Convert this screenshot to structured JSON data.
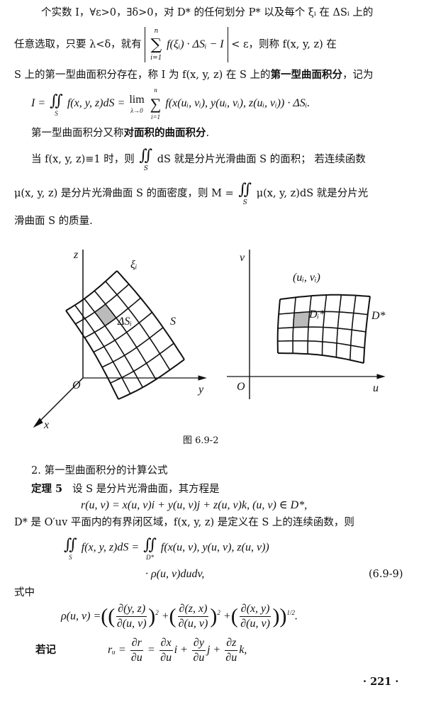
{
  "text": {
    "l1": "个实数 I，∀ε>0，∃δ>0，对 D* 的任何划分 P* 以及每个 ξᵢ 在 ΔSᵢ 上的",
    "l2": {
      "a": "任意选取，只要 λ<δ，就有",
      "sum_top": "n",
      "sum": "∑",
      "sum_bot": "i=1",
      "expr": "f(ξᵢ) · ΔSᵢ − I",
      "b": "< ε，则称 f(x, y, z) 在"
    },
    "l3": {
      "a": "S 上的第一型曲面积分存在，称 I 为 f(x, y, z) 在 S 上的",
      "bold": "第一型曲面积分",
      "b": "，记为"
    },
    "l4": {
      "a": "I =",
      "int": "∬",
      "int_sub": "S",
      "b": "f(x, y, z)dS =",
      "lim": "lim",
      "lim_sub": "λ→0",
      "sum_top": "n",
      "sum": "∑",
      "sum_bot": "i=1",
      "c": "f(x(uᵢ, vᵢ), y(uᵢ, vᵢ), z(uᵢ, vᵢ)) · ΔSᵢ."
    },
    "l5": {
      "a": "第一型曲面积分又称",
      "bold": "对面积的曲面积分",
      "b": "."
    },
    "l6": {
      "a": "当 f(x, y, z)≡1 时，则",
      "int": "∬",
      "int_sub": "S",
      "b": "dS 就是分片光滑曲面 S 的面积；  若连续函数"
    },
    "l7": {
      "a": "μ(x, y, z) 是分片光滑曲面 S 的面密度，则 M =",
      "int": "∬",
      "int_sub": "S",
      "b": "μ(x, y, z)dS 就是分片光"
    },
    "l8": "滑曲面 S 的质量."
  },
  "figure": {
    "left": {
      "z": "z",
      "y": "y",
      "x": "x",
      "origin": "O",
      "xi": "ξᵢ",
      "dS": "ΔSᵢ",
      "S": "S"
    },
    "right": {
      "v": "v",
      "u": "u",
      "origin": "O",
      "point": "(uᵢ, vᵢ)",
      "Di": "Dᵢ*",
      "D": "D*"
    },
    "caption": "图   6.9-2"
  },
  "section": {
    "heading": "2. 第一型曲面积分的计算公式",
    "theorem_label": "定理 5",
    "theorem_text": "设 S 是分片光滑曲面，其方程是",
    "eq_r": "r(u, v) = x(u, v)i + y(u, v)j + z(u, v)k,   (u, v) ∈ D*,",
    "d_line": "D* 是 O′uv 平面内的有界闭区域，f(x, y, z) 是定义在 S 上的连续函数，则",
    "eq1": {
      "int": "∬",
      "int_sub": "S",
      "a": "f(x, y, z)dS =",
      "int2": "∬",
      "int2_sub": "D*",
      "b": "f(x(u, v), y(u, v), z(u, v))"
    },
    "eq2": "· ρ(u, v)dudv,",
    "eq_number": "(6.9-9)",
    "where": "式中",
    "rho": {
      "lhs": "ρ(u, v) =",
      "n1": "∂(y, z)",
      "d1": "∂(u, v)",
      "n2": "∂(z, x)",
      "d2": "∂(u, v)",
      "n3": "∂(x, y)",
      "d3": "∂(u, v)",
      "exp": "2",
      "outer_exp": "1/2",
      "plus": "+",
      "end": "."
    },
    "note_label": "若记",
    "ru": {
      "lhs": "rᵤ =",
      "n1": "∂r",
      "d1": "∂u",
      "eq": "=",
      "n2": "∂x",
      "d2": "∂u",
      "i": "i +",
      "n3": "∂y",
      "d3": "∂u",
      "j": "j +",
      "n4": "∂z",
      "d4": "∂u",
      "k": "k,"
    }
  },
  "page_number": "· 221 ·"
}
